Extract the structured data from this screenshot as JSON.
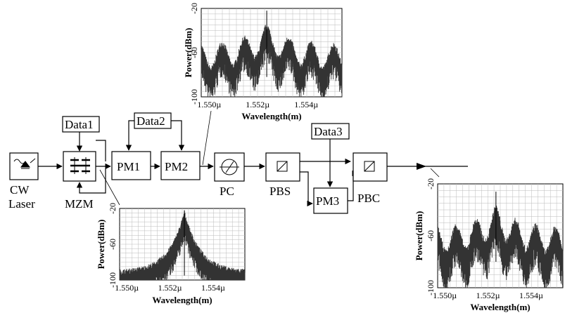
{
  "labels": {
    "cw_line1": "CW",
    "cw_line2": "Laser",
    "mzm": "MZM",
    "pm1": "PM1",
    "pm2": "PM2",
    "pm3": "PM3",
    "pc": "PC",
    "pbs": "PBS",
    "pbc": "PBC",
    "data1": "Data1",
    "data2": "Data2",
    "data3": "Data3"
  },
  "chart_data": [
    {
      "type": "line",
      "name": "spectrum-pm2-output",
      "xlabel": "Wavelength(m)",
      "ylabel": "Power(dBm)",
      "xticks": [
        "1.550µ",
        "1.552µ",
        "1.554µ"
      ],
      "yticks": [
        "-20",
        "-60",
        "-100"
      ],
      "xlim": [
        1.5497,
        1.5555
      ],
      "ylim": [
        -100,
        -20
      ],
      "grid": true,
      "shape": "flat-modulated",
      "peak_x": 1.5524,
      "peak_y": -28,
      "base_y": -82,
      "spread": 14
    },
    {
      "type": "line",
      "name": "spectrum-mzm-output",
      "xlabel": "Wavelength(m)",
      "ylabel": "Power(dBm)",
      "xticks": [
        "1.550µ",
        "1.552µ",
        "1.554µ"
      ],
      "yticks": [
        "-20",
        "-60",
        "-100"
      ],
      "xlim": [
        1.5497,
        1.5555
      ],
      "ylim": [
        -100,
        -20
      ],
      "grid": true,
      "shape": "narrow-peak",
      "peak_x": 1.5527,
      "peak_y": -28,
      "base_y": -95,
      "spread": 8
    },
    {
      "type": "line",
      "name": "spectrum-pbc-output",
      "xlabel": "Wavelength(m)",
      "ylabel": "Power(dBm)",
      "xticks": [
        "1.550µ",
        "1.552µ",
        "1.554µ"
      ],
      "yticks": [
        "-20",
        "-60",
        "-100"
      ],
      "xlim": [
        1.5497,
        1.5555
      ],
      "ylim": [
        -100,
        -20
      ],
      "grid": true,
      "shape": "flat-modulated",
      "peak_x": 1.5524,
      "peak_y": -32,
      "base_y": -80,
      "spread": 14
    }
  ]
}
